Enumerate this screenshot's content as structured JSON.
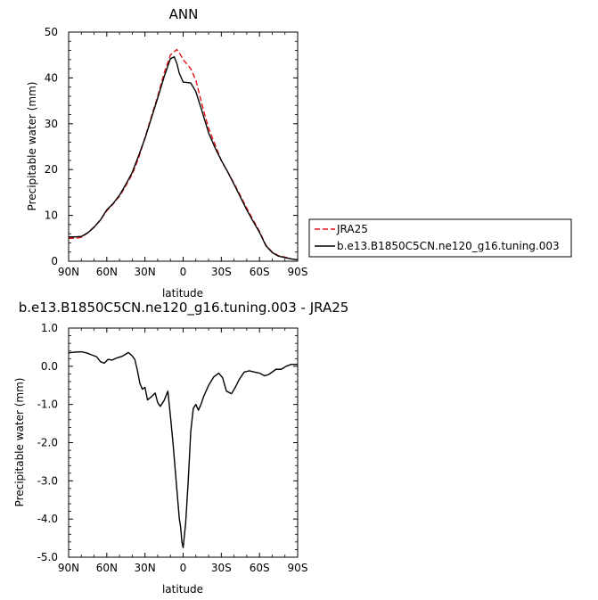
{
  "chart_data": [
    {
      "type": "line",
      "title": "ANN",
      "xlabel": "latitude",
      "ylabel": "Precipitable water (mm)",
      "xlim": [
        90,
        -90
      ],
      "ylim": [
        0,
        50
      ],
      "xticks": [
        90,
        60,
        30,
        0,
        -30,
        -60,
        -90
      ],
      "xtick_labels": [
        "90N",
        "60N",
        "30N",
        "0",
        "30S",
        "60S",
        "90S"
      ],
      "yticks": [
        0,
        10,
        20,
        30,
        40,
        50
      ],
      "ytick_labels": [
        "0",
        "10",
        "20",
        "30",
        "40",
        "50"
      ],
      "legend_position": "right",
      "series": [
        {
          "name": "JRA25",
          "color": "#e8141b",
          "dash": "dashed",
          "x": [
            90,
            85,
            80,
            75,
            70,
            65,
            60,
            55,
            50,
            45,
            40,
            35,
            30,
            25,
            20,
            15,
            10,
            5,
            2,
            0,
            -3,
            -6,
            -10,
            -15,
            -20,
            -25,
            -30,
            -35,
            -40,
            -45,
            -50,
            -55,
            -60,
            -65,
            -70,
            -75,
            -80,
            -85,
            -90
          ],
          "values": [
            5.0,
            5.0,
            5.2,
            6.2,
            7.5,
            9.0,
            11.0,
            12.5,
            14.2,
            16.5,
            19.0,
            22.5,
            27.0,
            31.5,
            36.0,
            41.0,
            45.0,
            46.2,
            45.0,
            44.0,
            43.0,
            42.0,
            39.5,
            34.0,
            29.0,
            25.5,
            22.0,
            19.5,
            17.0,
            14.3,
            11.6,
            9.0,
            6.5,
            3.5,
            2.0,
            1.2,
            0.9,
            0.5,
            0.3
          ]
        },
        {
          "name": "b.e13.B1850C5CN.ne120_g16.tuning.003",
          "color": "#000000",
          "dash": "solid",
          "x": [
            90,
            85,
            80,
            75,
            70,
            65,
            60,
            55,
            50,
            45,
            40,
            35,
            30,
            25,
            20,
            15,
            10,
            7,
            5,
            3,
            0,
            -3,
            -6,
            -10,
            -15,
            -20,
            -25,
            -30,
            -35,
            -40,
            -45,
            -50,
            -55,
            -60,
            -65,
            -70,
            -75,
            -80,
            -85,
            -90
          ],
          "values": [
            5.3,
            5.3,
            5.4,
            6.2,
            7.4,
            9.0,
            11.2,
            12.6,
            14.4,
            16.8,
            19.4,
            23.0,
            26.8,
            31.2,
            35.6,
            40.2,
            44.2,
            44.6,
            43.2,
            41.0,
            39.1,
            39.0,
            38.9,
            37.0,
            32.6,
            28.0,
            24.8,
            22.0,
            19.5,
            16.8,
            14.0,
            11.2,
            8.7,
            6.3,
            3.4,
            1.9,
            1.1,
            0.8,
            0.5,
            0.3
          ]
        }
      ]
    },
    {
      "type": "line",
      "title": "b.e13.B1850C5CN.ne120_g16.tuning.003 - JRA25",
      "xlabel": "latitude",
      "ylabel": "Precipitable water (mm)",
      "xlim": [
        90,
        -90
      ],
      "ylim": [
        -5.0,
        1.0
      ],
      "xticks": [
        90,
        60,
        30,
        0,
        -30,
        -60,
        -90
      ],
      "xtick_labels": [
        "90N",
        "60N",
        "30N",
        "0",
        "30S",
        "60S",
        "90S"
      ],
      "yticks": [
        1.0,
        0.0,
        -1.0,
        -2.0,
        -3.0,
        -4.0,
        -5.0
      ],
      "ytick_labels": [
        "1.0",
        "0.0",
        "-1.0",
        "-2.0",
        "-3.0",
        "-4.0",
        "-5.0"
      ],
      "series": [
        {
          "color": "#000000",
          "dash": "solid",
          "x": [
            90,
            85,
            80,
            76,
            72,
            68,
            65,
            62,
            59,
            56,
            52,
            48,
            46,
            43,
            40,
            38,
            36,
            34,
            32,
            30,
            28,
            25,
            22,
            20,
            18,
            15,
            12,
            10,
            8,
            6,
            4,
            3,
            2,
            1,
            0,
            -2,
            -4,
            -6,
            -8,
            -10,
            -12,
            -14,
            -16,
            -20,
            -24,
            -28,
            -31,
            -34,
            -38,
            -41,
            -44,
            -48,
            -52,
            -56,
            -60,
            -64,
            -67,
            -70,
            -73,
            -77,
            -81,
            -85,
            -90
          ],
          "values": [
            0.35,
            0.37,
            0.38,
            0.35,
            0.3,
            0.25,
            0.12,
            0.08,
            0.18,
            0.16,
            0.22,
            0.26,
            0.3,
            0.36,
            0.27,
            0.18,
            -0.1,
            -0.45,
            -0.6,
            -0.55,
            -0.88,
            -0.8,
            -0.7,
            -0.95,
            -1.05,
            -0.9,
            -0.65,
            -1.3,
            -2.0,
            -2.8,
            -3.6,
            -4.0,
            -4.2,
            -4.6,
            -4.75,
            -4.1,
            -3.0,
            -1.7,
            -1.1,
            -1.0,
            -1.15,
            -1.0,
            -0.8,
            -0.5,
            -0.28,
            -0.18,
            -0.3,
            -0.65,
            -0.72,
            -0.55,
            -0.35,
            -0.15,
            -0.12,
            -0.15,
            -0.18,
            -0.25,
            -0.22,
            -0.15,
            -0.08,
            -0.08,
            0.0,
            0.05,
            0.05
          ]
        }
      ]
    }
  ]
}
